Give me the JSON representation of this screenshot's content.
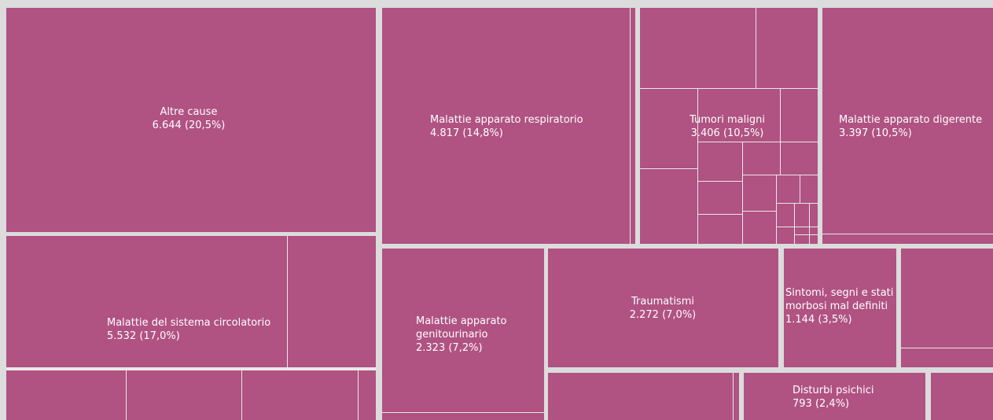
{
  "chart_data": {
    "type": "treemap",
    "categories": [
      "Altre cause",
      "Malattie del sistema circolatorio",
      "Malattie apparato respiratorio",
      "Tumori maligni",
      "Malattie apparato digerente",
      "Malattie apparato genitourinario",
      "Traumatismi",
      "Sintomi, segni e stati morbosi mal definiti",
      "Disturbi psichici"
    ],
    "values": [
      6644,
      5532,
      4817,
      3406,
      3397,
      2323,
      2272,
      1144,
      793
    ],
    "value_labels": [
      "6.644 (20,5%)",
      "5.532 (17,0%)",
      "4.817 (14,8%)",
      "3.406 (10,5%)",
      "3.397 (10,5%)",
      "2.323 (7,2%)",
      "2.272 (7,0%)",
      "1.144 (3,5%)",
      "793 (2,4%)"
    ],
    "color": "#b05282"
  }
}
